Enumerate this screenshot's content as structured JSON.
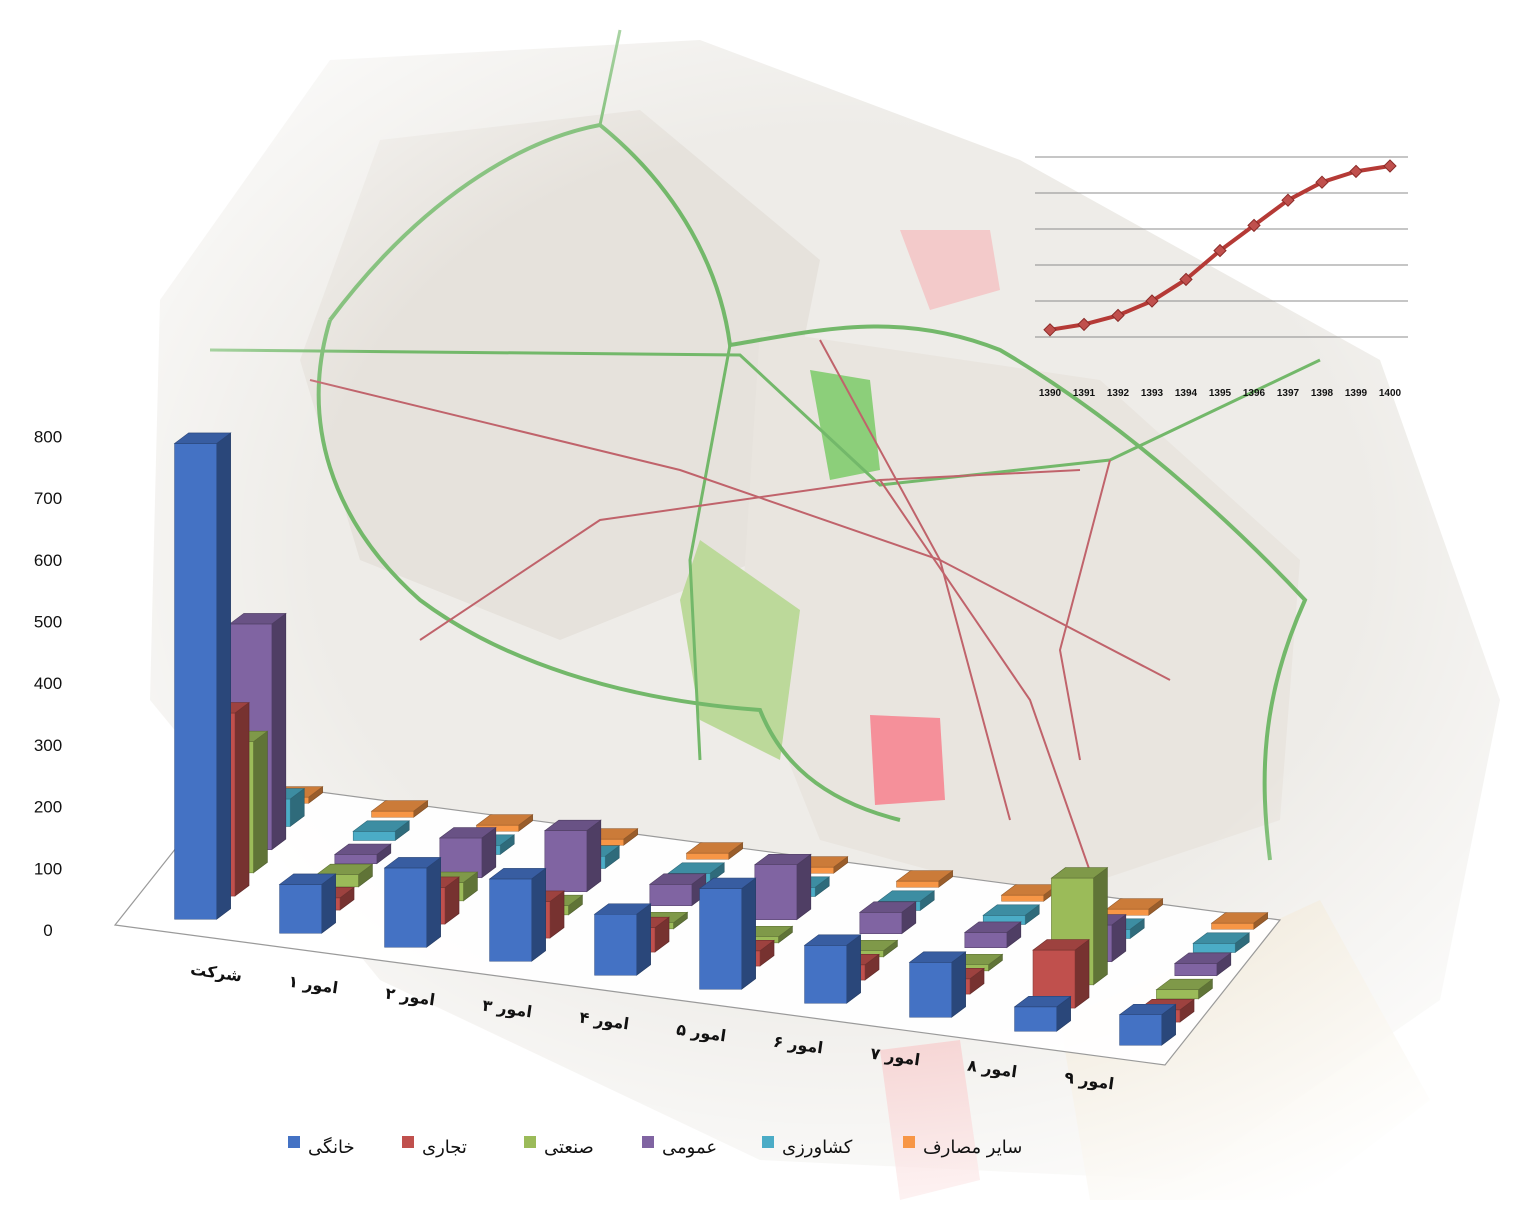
{
  "colors": {
    "series": [
      "#4472C4",
      "#C0504D",
      "#9BBB59",
      "#8064A2",
      "#4BACC6",
      "#F79646"
    ],
    "trend_line": "#B53A36",
    "map_road_green": "#73B86A",
    "map_road_red": "#C0636B"
  },
  "chart_data": [
    {
      "type": "bar",
      "variant": "3d-column-grouped",
      "title": "",
      "xlabel": "",
      "ylabel": "",
      "ylim": [
        0,
        800
      ],
      "yticks": [
        "0",
        "100",
        "200",
        "300",
        "400",
        "500",
        "600",
        "700",
        "800"
      ],
      "categories": [
        "شرکت",
        "امور ۱",
        "امور ۲",
        "امور ۳",
        "امور ۴",
        "امور ۵",
        "امور ۶",
        "امور ۷",
        "امور ۸",
        "امور ۹"
      ],
      "legend_position": "bottom",
      "series": [
        {
          "name": "خانگی",
          "values": [
            780,
            80,
            130,
            135,
            100,
            165,
            95,
            90,
            40,
            50
          ]
        },
        {
          "name": "تجاری",
          "values": [
            300,
            20,
            60,
            60,
            40,
            25,
            25,
            25,
            95,
            20
          ]
        },
        {
          "name": "صنعتی",
          "values": [
            215,
            20,
            30,
            15,
            10,
            10,
            10,
            10,
            175,
            15
          ]
        },
        {
          "name": "عمومی",
          "values": [
            370,
            15,
            65,
            100,
            35,
            90,
            35,
            25,
            60,
            20
          ]
        },
        {
          "name": "کشاورزی",
          "values": [
            45,
            15,
            15,
            20,
            15,
            15,
            15,
            15,
            15,
            15
          ]
        },
        {
          "name": "سایر مصارف",
          "values": [
            10,
            10,
            10,
            10,
            10,
            10,
            10,
            10,
            10,
            10
          ]
        }
      ]
    },
    {
      "type": "line",
      "title": "",
      "xlabel": "",
      "ylabel": "",
      "x": [
        "1390",
        "1391",
        "1392",
        "1393",
        "1394",
        "1395",
        "1396",
        "1397",
        "1398",
        "1399",
        "1400"
      ],
      "y": [
        0.4,
        0.7,
        1.2,
        2.0,
        3.2,
        4.8,
        6.2,
        7.6,
        8.6,
        9.2,
        9.5
      ],
      "ylim": [
        0,
        10
      ],
      "grid": true,
      "series_name": ""
    }
  ]
}
